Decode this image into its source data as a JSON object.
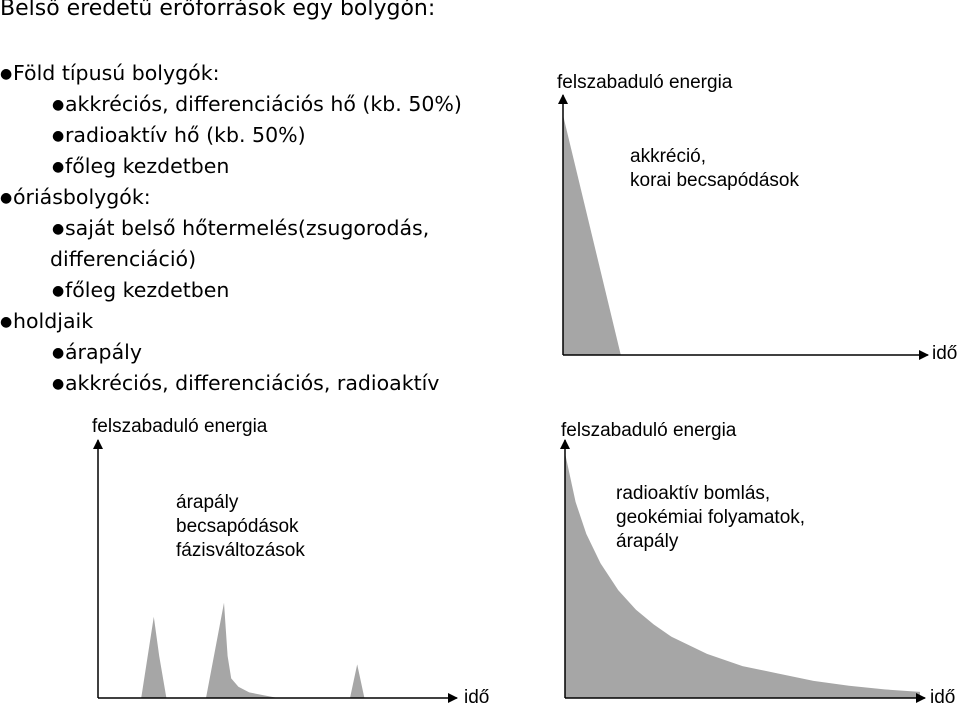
{
  "title": "Belső eredetű erőforrások egy bolygón:",
  "bullets": [
    {
      "level": 1,
      "text": "Föld típusú bolygók:"
    },
    {
      "level": 2,
      "text": "akkréciós, differenciációs hő (kb. 50%)"
    },
    {
      "level": 2,
      "text": "radioaktív hő (kb. 50%)"
    },
    {
      "level": 2,
      "text": "főleg kezdetben"
    },
    {
      "level": 1,
      "text": "óriásbolygók:"
    },
    {
      "level": 2,
      "text": "saját belső hőtermelés(zsugorodás,"
    },
    {
      "level": 3,
      "text": "differenciáció)"
    },
    {
      "level": 2,
      "text": "főleg kezdetben"
    },
    {
      "level": 1,
      "text": "holdjaik"
    },
    {
      "level": 2,
      "text": "árapály"
    },
    {
      "level": 2,
      "text": "akkréciós, differenciációs, radioaktív"
    }
  ],
  "colors": {
    "fill": "#a6a6a6",
    "axis": "#000000"
  },
  "chart_data": [
    {
      "type": "area",
      "ylabel": "felszabaduló energia",
      "xlabel": "idő",
      "annotation": [
        "akkréció,",
        "korai becsapódások"
      ],
      "xlim": [
        0,
        100
      ],
      "ylim": [
        0,
        100
      ],
      "x": [
        0,
        17,
        17
      ],
      "y": [
        100,
        0,
        0
      ]
    },
    {
      "type": "area",
      "ylabel": "felszabaduló energia",
      "xlabel": "idő",
      "annotation": [
        "árapály",
        "becsapódások",
        "fázisváltozások"
      ],
      "xlim": [
        0,
        100
      ],
      "ylim": [
        0,
        100
      ],
      "x": [
        12,
        15.5,
        17,
        19,
        30,
        35,
        36,
        37,
        39,
        42,
        46,
        50,
        70,
        72,
        74
      ],
      "y": [
        0,
        29,
        15,
        0,
        0,
        34,
        15,
        7,
        4,
        2,
        1,
        0,
        0,
        12,
        0
      ]
    },
    {
      "type": "area",
      "ylabel": "felszabaduló energia",
      "xlabel": "idő",
      "annotation": [
        "radioaktív bomlás,",
        "geokémiai folyamatok,",
        "árapály"
      ],
      "xlim": [
        0,
        100
      ],
      "ylim": [
        0,
        100
      ],
      "x": [
        0,
        3,
        6,
        10,
        15,
        20,
        25,
        30,
        40,
        50,
        60,
        70,
        80,
        90,
        100
      ],
      "y": [
        100,
        80,
        67,
        55,
        44,
        36,
        30,
        25,
        18,
        13,
        10,
        7,
        5,
        3.5,
        2.5
      ]
    }
  ]
}
